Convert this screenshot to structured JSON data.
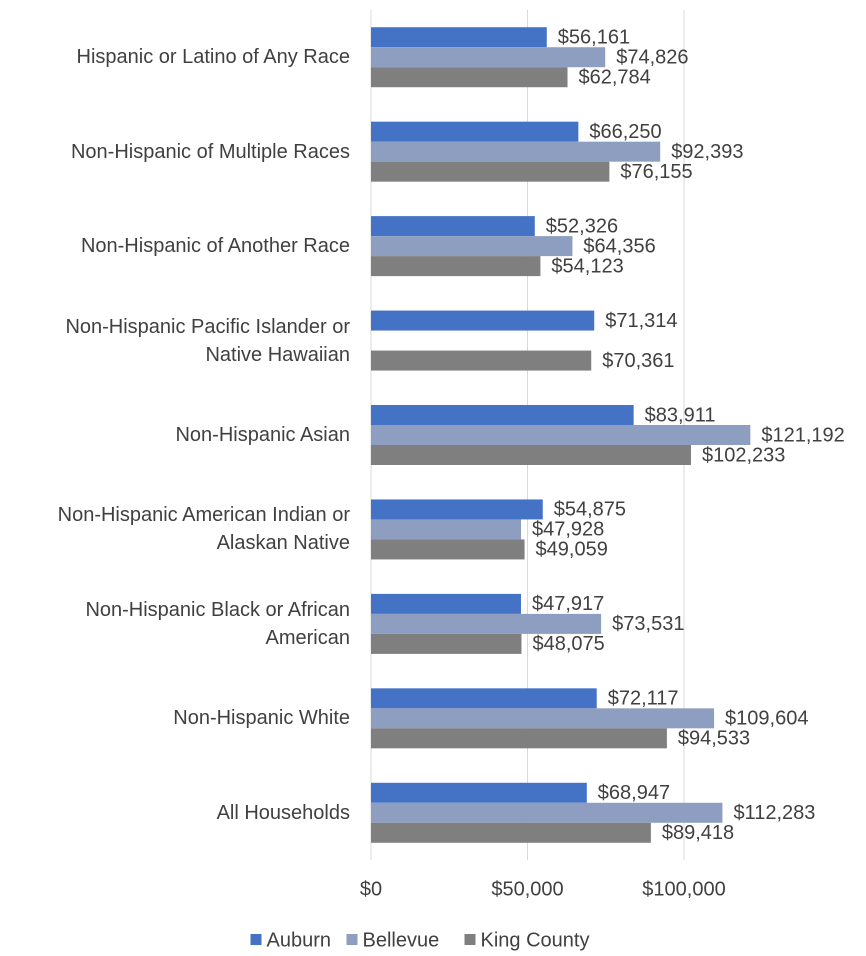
{
  "chart_data": {
    "type": "bar",
    "orientation": "horizontal",
    "categories": [
      "Hispanic or Latino of Any Race",
      "Non-Hispanic of Multiple Races",
      "Non-Hispanic of Another Race",
      "Non-Hispanic Pacific Islander or Native Hawaiian",
      "Non-Hispanic Asian",
      "Non-Hispanic American Indian or Alaskan Native",
      "Non-Hispanic Black or African American",
      "Non-Hispanic White",
      "All Households"
    ],
    "series": [
      {
        "name": "Auburn",
        "color": "#4472c4",
        "values": [
          56161,
          66250,
          52326,
          71314,
          83911,
          54875,
          47917,
          72117,
          68947
        ],
        "value_labels": [
          "$56,161",
          "$66,250",
          "$52,326",
          "$71,314",
          "$83,911",
          "$54,875",
          "$47,917",
          "$72,117",
          "$68,947"
        ]
      },
      {
        "name": "Bellevue",
        "color": "#8e9ec0",
        "values": [
          74826,
          92393,
          64356,
          null,
          121192,
          47928,
          73531,
          109604,
          112283
        ],
        "value_labels": [
          "$74,826",
          "$92,393",
          "$64,356",
          null,
          "$121,192",
          "$47,928",
          "$73,531",
          "$109,604",
          "$112,283"
        ]
      },
      {
        "name": "King County",
        "color": "#7f7f7f",
        "values": [
          62784,
          76155,
          54123,
          70361,
          102233,
          49059,
          48075,
          94533,
          89418
        ],
        "value_labels": [
          "$62,784",
          "$76,155",
          "$54,123",
          "$70,361",
          "$102,233",
          "$49,059",
          "$48,075",
          "$94,533",
          "$89,418"
        ]
      }
    ],
    "xlim": [
      0,
      150000
    ],
    "xticks": [
      {
        "value": 0,
        "label": "$0"
      },
      {
        "value": 50000,
        "label": "$50,000"
      },
      {
        "value": 100000,
        "label": "$100,000"
      }
    ],
    "grid": true,
    "legend": "bottom"
  }
}
